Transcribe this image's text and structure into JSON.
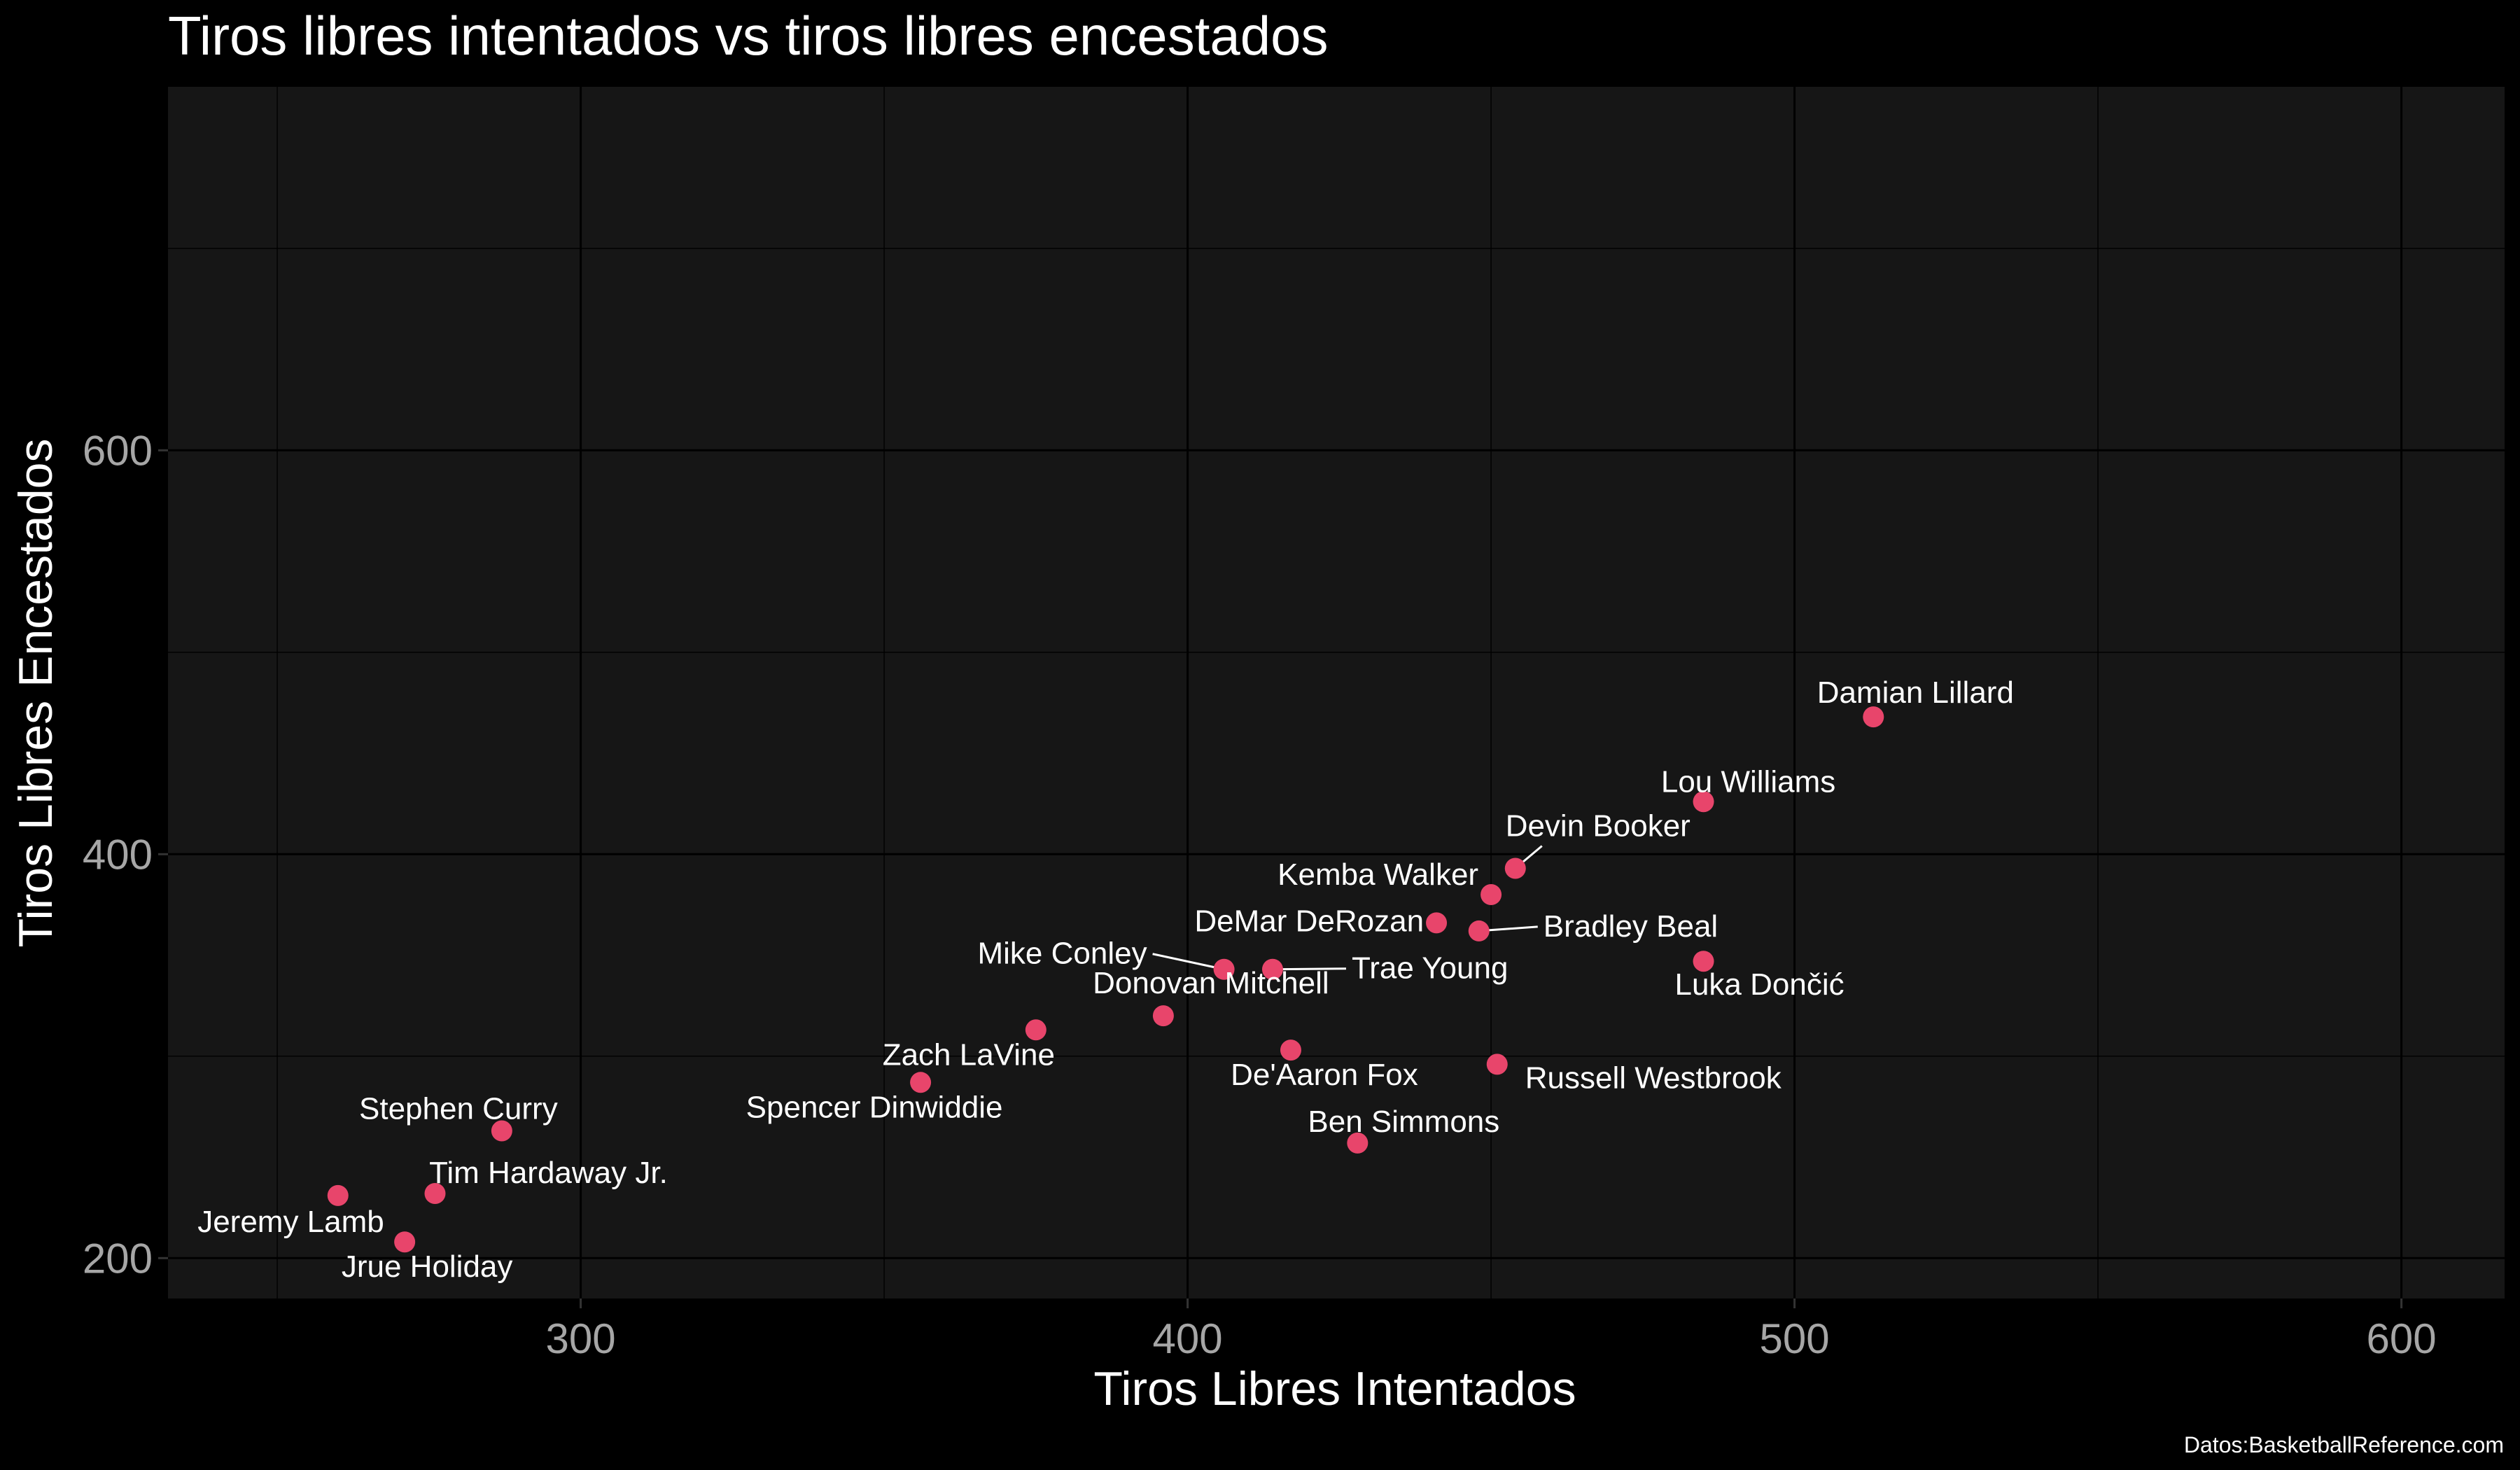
{
  "chart_data": {
    "type": "scatter",
    "title": "Tiros libres intentados vs tiros libres encestados",
    "xlabel": "Tiros Libres Intentados",
    "ylabel": "Tiros Libres Encestados",
    "caption": "Datos:BasketballReference.com",
    "xlim": [
      232,
      617
    ],
    "ylim": [
      180,
      780
    ],
    "xticks": [
      300,
      400,
      500,
      600
    ],
    "yticks": [
      200,
      400,
      600
    ],
    "xminor": [
      250,
      350,
      450,
      550
    ],
    "yminor": [
      300,
      500,
      700
    ],
    "grid": true,
    "legend": "none",
    "colors": {
      "background": "#000000",
      "panel": "#161616",
      "point": "#e8456b",
      "label": "#ffffff",
      "tick_label": "#a6a6a6"
    },
    "points": [
      {
        "name": "Damian Lillard",
        "x": 513,
        "y": 468
      },
      {
        "name": "Lou Williams",
        "x": 485,
        "y": 426
      },
      {
        "name": "Devin Booker",
        "x": 454,
        "y": 393
      },
      {
        "name": "Kemba Walker",
        "x": 450,
        "y": 380
      },
      {
        "name": "DeMar DeRozan",
        "x": 441,
        "y": 366
      },
      {
        "name": "Bradley Beal",
        "x": 448,
        "y": 362
      },
      {
        "name": "Luka Dončić",
        "x": 485,
        "y": 347
      },
      {
        "name": "Mike Conley",
        "x": 406,
        "y": 343
      },
      {
        "name": "Trae Young",
        "x": 414,
        "y": 343
      },
      {
        "name": "Donovan Mitchell",
        "x": 396,
        "y": 320
      },
      {
        "name": "Zach LaVine",
        "x": 375,
        "y": 313
      },
      {
        "name": "De'Aaron Fox",
        "x": 417,
        "y": 303
      },
      {
        "name": "Russell Westbrook",
        "x": 451,
        "y": 296
      },
      {
        "name": "Spencer Dinwiddie",
        "x": 356,
        "y": 287
      },
      {
        "name": "Stephen Curry",
        "x": 287,
        "y": 263
      },
      {
        "name": "Ben Simmons",
        "x": 428,
        "y": 257
      },
      {
        "name": "Tim Hardaway Jr.",
        "x": 276,
        "y": 232
      },
      {
        "name": "Jeremy Lamb",
        "x": 260,
        "y": 231
      },
      {
        "name": "Jrue Holiday",
        "x": 271,
        "y": 208
      }
    ]
  }
}
